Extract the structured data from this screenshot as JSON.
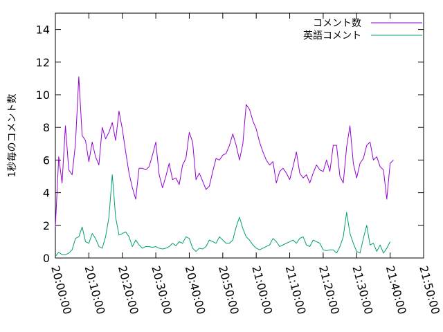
{
  "chart_data": {
    "type": "line",
    "title": "",
    "xlabel": "",
    "ylabel": "1秒毎のコメント数",
    "xlim": [
      "20:00:00",
      "21:50:00"
    ],
    "ylim": [
      0,
      15
    ],
    "x_ticks": [
      "20:00:00",
      "20:10:00",
      "20:20:00",
      "20:30:00",
      "20:40:00",
      "20:50:00",
      "21:00:00",
      "21:10:00",
      "21:20:00",
      "21:30:00",
      "21:40:00",
      "21:50:00"
    ],
    "y_ticks": [
      0,
      2,
      4,
      6,
      8,
      10,
      12,
      14
    ],
    "grid": false,
    "legend_position": "top-right",
    "x_start": "20:00:00",
    "x_step": "1 minute",
    "series": [
      {
        "name": "コメント数",
        "color": "#9400d3",
        "values": [
          1.9,
          6.2,
          4.6,
          8.1,
          5.4,
          5.1,
          7.0,
          11.1,
          7.5,
          7.2,
          5.9,
          7.1,
          6.2,
          5.7,
          8.0,
          7.3,
          7.7,
          8.3,
          7.2,
          9.0,
          7.9,
          6.5,
          5.2,
          4.3,
          3.6,
          5.5,
          5.5,
          5.4,
          5.6,
          6.3,
          7.1,
          5.1,
          4.3,
          5.0,
          5.8,
          4.8,
          4.9,
          4.5,
          5.7,
          6.1,
          7.7,
          7.1,
          4.8,
          5.2,
          4.7,
          4.2,
          4.4,
          5.3,
          6.1,
          6.0,
          6.3,
          6.4,
          6.9,
          7.6,
          6.9,
          6.0,
          7.0,
          9.4,
          9.1,
          8.4,
          7.9,
          7.1,
          6.5,
          6.0,
          5.7,
          5.9,
          4.6,
          5.3,
          5.5,
          5.2,
          4.8,
          5.6,
          6.5,
          5.2,
          4.9,
          5.1,
          4.6,
          5.2,
          5.7,
          5.4,
          5.3,
          6.0,
          5.3,
          6.9,
          6.9,
          5.0,
          4.6,
          6.8,
          8.1,
          5.8,
          4.9,
          5.8,
          6.1,
          6.9,
          7.1,
          6.0,
          6.2,
          5.6,
          5.4,
          3.6,
          5.8,
          6.0
        ]
      },
      {
        "name": "英語コメント",
        "color": "#009e73",
        "values": [
          0.1,
          0.35,
          0.2,
          0.2,
          0.3,
          0.5,
          1.2,
          1.3,
          1.9,
          1.0,
          0.9,
          1.5,
          1.2,
          0.7,
          0.6,
          1.3,
          2.5,
          5.1,
          2.5,
          1.4,
          1.5,
          1.6,
          1.3,
          0.7,
          1.1,
          0.8,
          0.6,
          0.7,
          0.7,
          0.65,
          0.7,
          0.6,
          0.55,
          0.6,
          0.7,
          0.9,
          0.75,
          1.0,
          0.9,
          1.3,
          1.2,
          0.6,
          0.4,
          0.6,
          0.55,
          0.7,
          1.1,
          1.0,
          0.9,
          1.3,
          1.1,
          0.9,
          0.9,
          1.1,
          1.9,
          2.5,
          1.8,
          1.3,
          1.1,
          0.8,
          0.6,
          0.5,
          0.6,
          0.7,
          0.8,
          1.2,
          1.0,
          0.7,
          0.8,
          0.9,
          1.0,
          1.1,
          0.9,
          1.2,
          1.3,
          0.8,
          0.7,
          1.1,
          1.0,
          0.9,
          0.5,
          0.45,
          0.5,
          0.5,
          0.3,
          0.7,
          1.3,
          2.8,
          1.5,
          0.9,
          0.4,
          0.3,
          1.2,
          2.0,
          0.8,
          0.9,
          0.4,
          0.8,
          0.3,
          0.6,
          1.0
        ]
      }
    ]
  }
}
